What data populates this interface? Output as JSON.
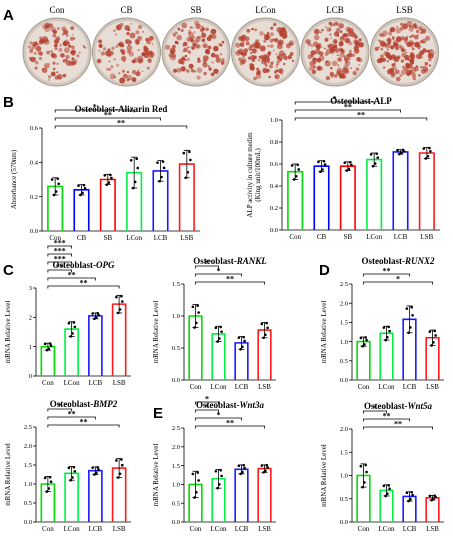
{
  "panels": {
    "A": {
      "letter": "A",
      "wells": [
        "Con",
        "CB",
        "SB",
        "LCon",
        "LCB",
        "LSB"
      ]
    },
    "B": "B",
    "C": "C",
    "D": "D",
    "E": "E"
  },
  "colors": {
    "Con": "#00dd00",
    "CB": "#0000ff",
    "SB": "#ff0000",
    "LCon": "#00ee44",
    "LCB": "#1a1aff",
    "LSB": "#ff1a1a",
    "error": "#000000",
    "well_red": "#b5402e",
    "well_rim": "#cfc6bd"
  },
  "chart_data": [
    {
      "id": "alizarin",
      "type": "bar",
      "title": "Osteoblast-Alizarin Red",
      "ylabel": "Absorbance (570nm)",
      "categories": [
        "Con",
        "CB",
        "SB",
        "LCon",
        "LCB",
        "LSB"
      ],
      "values": [
        0.26,
        0.24,
        0.3,
        0.34,
        0.35,
        0.39
      ],
      "errors": [
        0.05,
        0.03,
        0.03,
        0.09,
        0.06,
        0.08
      ],
      "ylim": [
        0,
        0.6
      ],
      "yticks": [
        "0.0",
        "0.2",
        "0.4",
        "0.6"
      ],
      "significance": [
        "*",
        "**",
        "**"
      ]
    },
    {
      "id": "alp",
      "type": "bar",
      "title": "Osteoblast-ALP",
      "ylabel": "ALP activity in culture medim (King unit/100mL)",
      "ylabel_lines": [
        "ALP activity in culture medim",
        "(King unit/100mL)"
      ],
      "categories": [
        "Con",
        "CB",
        "SB",
        "LCon",
        "LCB",
        "LSB"
      ],
      "values": [
        0.53,
        0.58,
        0.58,
        0.64,
        0.71,
        0.7
      ],
      "errors": [
        0.07,
        0.05,
        0.04,
        0.06,
        0.02,
        0.05
      ],
      "ylim": [
        0,
        1.0
      ],
      "yticks": [
        "0.0",
        "0.2",
        "0.4",
        "0.6",
        "0.8",
        "1.0"
      ],
      "significance": [
        "*",
        "**",
        "**"
      ]
    },
    {
      "id": "opg",
      "type": "bar",
      "title": "Osteoblast-",
      "title_gene": "OPG",
      "ylabel": "mRNA Relative Level",
      "categories": [
        "Con",
        "LCon",
        "LCB",
        "LSB"
      ],
      "values": [
        1.0,
        1.6,
        2.05,
        2.45
      ],
      "errors": [
        0.12,
        0.25,
        0.1,
        0.3
      ],
      "ylim": [
        0,
        3
      ],
      "yticks": [
        "0",
        "1",
        "2",
        "3"
      ],
      "significance": [
        "***",
        "***",
        "***",
        "**",
        "**",
        "**"
      ]
    },
    {
      "id": "rankl",
      "type": "bar",
      "title": "Osteoblast-",
      "title_gene": "RANKL",
      "ylabel": "mRNA Relative Level",
      "categories": [
        "Con",
        "LCon",
        "LCB",
        "LSB"
      ],
      "values": [
        1.0,
        0.72,
        0.58,
        0.78
      ],
      "errors": [
        0.18,
        0.12,
        0.1,
        0.12
      ],
      "ylim": [
        0,
        1.5
      ],
      "yticks": [
        "0.0",
        "0.5",
        "1.0",
        "1.5"
      ],
      "significance": [
        "*",
        "*",
        "**"
      ]
    },
    {
      "id": "runx2",
      "type": "bar",
      "title": "Osteoblast-",
      "title_gene": "RUNX2",
      "ylabel": "mRNA Relative Level",
      "categories": [
        "Con",
        "LCon",
        "LCB",
        "LSB"
      ],
      "values": [
        1.0,
        1.22,
        1.58,
        1.1
      ],
      "errors": [
        0.12,
        0.18,
        0.35,
        0.2
      ],
      "ylim": [
        0,
        2.5
      ],
      "yticks": [
        "0.0",
        "0.5",
        "1.0",
        "1.5",
        "2.0",
        "2.5"
      ],
      "significance": [
        "**",
        "*"
      ]
    },
    {
      "id": "bmp2",
      "type": "bar",
      "title": "Osteoblast-",
      "title_gene": "BMP2",
      "ylabel": "mRNA Relative Level",
      "categories": [
        "Con",
        "LCon",
        "LCB",
        "LSB"
      ],
      "values": [
        1.0,
        1.28,
        1.35,
        1.42
      ],
      "errors": [
        0.2,
        0.18,
        0.1,
        0.25
      ],
      "ylim": [
        0,
        2.5
      ],
      "yticks": [
        "0.0",
        "0.5",
        "1.0",
        "1.5",
        "2.0",
        "2.5"
      ],
      "significance": [
        "*",
        "**",
        "**"
      ]
    },
    {
      "id": "wnt3a",
      "type": "bar",
      "title": "Osteoblast-",
      "title_gene": "Wnt3a",
      "ylabel": "mRNA Relative Level",
      "categories": [
        "Con",
        "LCon",
        "LCB",
        "LSB"
      ],
      "values": [
        1.0,
        1.15,
        1.4,
        1.42
      ],
      "errors": [
        0.35,
        0.25,
        0.12,
        0.1
      ],
      "ylim": [
        0,
        2.5
      ],
      "yticks": [
        "0.0",
        "0.5",
        "1.0",
        "1.5",
        "2.0",
        "2.5"
      ],
      "significance": [
        "*",
        "*",
        "*",
        "**"
      ]
    },
    {
      "id": "wnt5a",
      "type": "bar",
      "title": "Osteoblast-",
      "title_gene": "Wnt5a",
      "ylabel": "mRNA Relative Level",
      "categories": [
        "Con",
        "LCon",
        "LCB",
        "LSB"
      ],
      "values": [
        1.0,
        0.68,
        0.55,
        0.52
      ],
      "errors": [
        0.25,
        0.12,
        0.1,
        0.05
      ],
      "ylim": [
        0,
        2.0
      ],
      "yticks": [
        "0.0",
        "0.5",
        "1.0",
        "1.5",
        "2.0"
      ],
      "significance": [
        "*",
        "**",
        "**"
      ]
    }
  ]
}
